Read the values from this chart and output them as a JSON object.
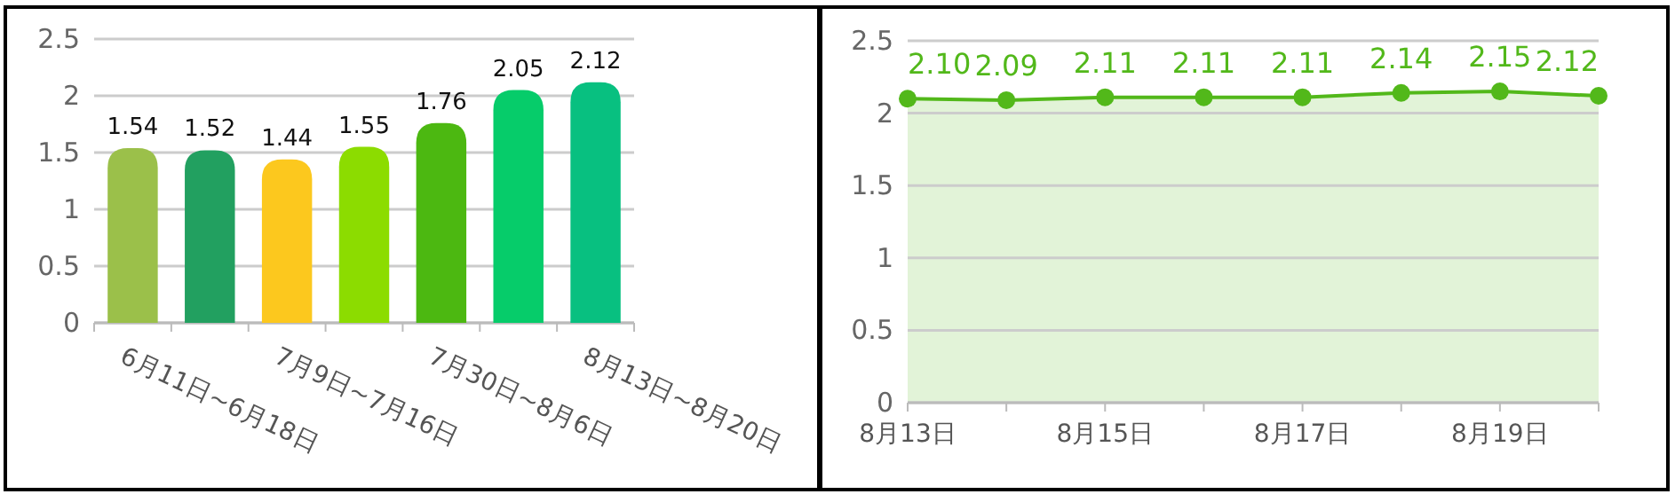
{
  "chart_data": [
    {
      "type": "bar",
      "categories": [
        "6月11日~6月18日",
        null,
        "7月9日~7月16日",
        null,
        "7月30日~8月6日",
        null,
        "8月13日~8月20日"
      ],
      "values": [
        1.54,
        1.52,
        1.44,
        1.55,
        1.76,
        2.05,
        2.12
      ],
      "colors": [
        "#9bc04a",
        "#22a060",
        "#fcc81e",
        "#8cdc00",
        "#4cb811",
        "#06cc6a",
        "#08c080"
      ],
      "ylim": [
        0,
        2.5
      ],
      "yticks": [
        0,
        0.5,
        1,
        1.5,
        2,
        2.5
      ],
      "grid": "y",
      "data_labels": true
    },
    {
      "type": "area",
      "categories": [
        "8月13日",
        null,
        "8月15日",
        null,
        "8月17日",
        null,
        "8月19日",
        null
      ],
      "series": [
        {
          "color": "#52b81a",
          "values": [
            2.1,
            2.09,
            2.11,
            2.11,
            2.11,
            2.14,
            2.15,
            2.12
          ]
        }
      ],
      "value_labels": [
        "2.10",
        "2.09",
        "2.11",
        "2.11",
        "2.11",
        "2.14",
        "2.15",
        "2.12"
      ],
      "ylim": [
        0,
        2.5
      ],
      "yticks": [
        0,
        0.5,
        1,
        1.5,
        2,
        2.5
      ],
      "grid": "y",
      "marker": "circle"
    }
  ]
}
